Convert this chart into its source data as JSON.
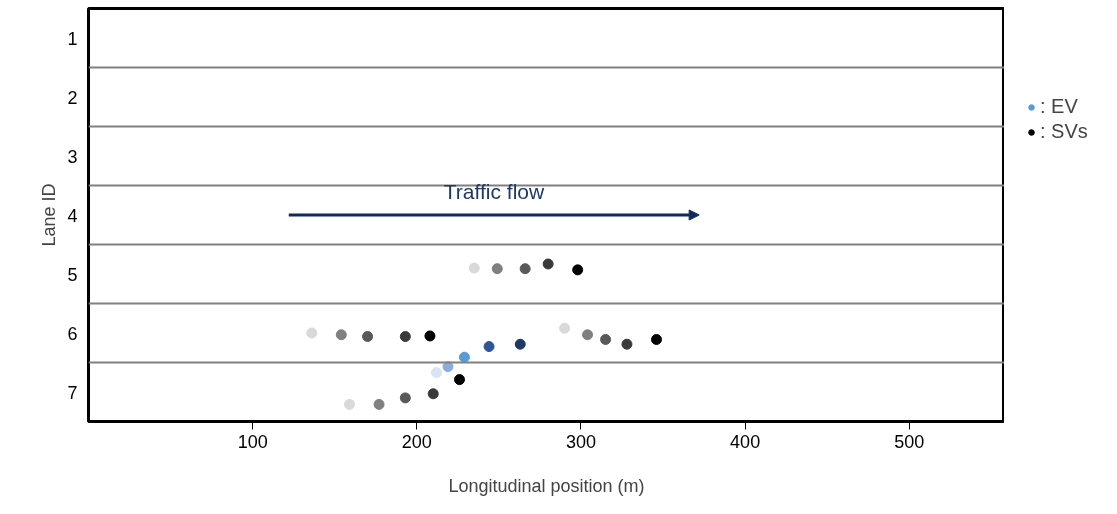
{
  "chart_data": {
    "type": "scatter",
    "xlabel": "Longitudinal position (m)",
    "ylabel": "Lane ID",
    "xlim": [
      0,
      558
    ],
    "xticks": [
      100,
      200,
      300,
      400,
      500
    ],
    "ylim": [
      7.5,
      0.5
    ],
    "yticks": [
      1,
      2,
      3,
      4,
      5,
      6,
      7
    ],
    "grid": false,
    "legend": "right",
    "marker": "circle",
    "ref_lines": [
      {
        "axis": "y",
        "value": 1.5,
        "color": "#808080"
      },
      {
        "axis": "y",
        "value": 2.5,
        "color": "#808080"
      },
      {
        "axis": "y",
        "value": 3.5,
        "color": "#808080"
      },
      {
        "axis": "y",
        "value": 4.5,
        "color": "#808080"
      },
      {
        "axis": "y",
        "value": 5.5,
        "color": "#808080"
      },
      {
        "axis": "y",
        "value": 6.5,
        "color": "#808080"
      }
    ],
    "annotations": [
      "Traffic flow"
    ],
    "series": [
      {
        "name": ": EV",
        "color": "#5b9bd5",
        "x": [
          212,
          219,
          229,
          244,
          263
        ],
        "values": [
          6.67,
          6.57,
          6.41,
          6.23,
          6.19
        ],
        "colors": [
          "#dae3f3",
          "#8faadc",
          "#5b9bd5",
          "#2f5597",
          "#1f3864"
        ]
      },
      {
        "name": ": SVs",
        "color": "#000000",
        "x": [
          235,
          249,
          266,
          280,
          298,
          136,
          154,
          170,
          193,
          208,
          290,
          304,
          315,
          328,
          346,
          159,
          177,
          193,
          210,
          226
        ],
        "values": [
          4.9,
          4.91,
          4.91,
          4.83,
          4.93,
          6.0,
          6.03,
          6.06,
          6.06,
          6.05,
          5.92,
          6.03,
          6.11,
          6.19,
          6.11,
          7.21,
          7.21,
          7.1,
          7.03,
          6.79
        ],
        "colors": [
          "#d9d9d9",
          "#808080",
          "#595959",
          "#3a3a3a",
          "#000000",
          "#d9d9d9",
          "#808080",
          "#595959",
          "#3a3a3a",
          "#000000",
          "#d9d9d9",
          "#808080",
          "#595959",
          "#3a3a3a",
          "#000000",
          "#d9d9d9",
          "#808080",
          "#595959",
          "#3a3a3a",
          "#000000"
        ]
      }
    ]
  }
}
